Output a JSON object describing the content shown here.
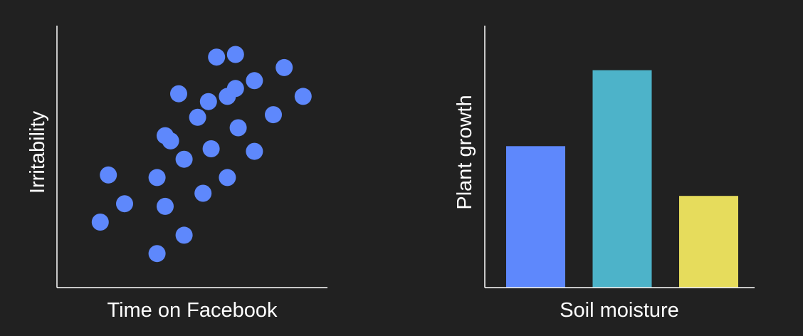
{
  "chart_data": [
    {
      "type": "scatter",
      "xlabel": "Time on Facebook",
      "ylabel": "Irritability",
      "xlim": [
        0,
        100
      ],
      "ylim": [
        0,
        100
      ],
      "grid": false,
      "point_color": "#5e88fc",
      "points": [
        {
          "x": 16,
          "y": 25
        },
        {
          "x": 19,
          "y": 43
        },
        {
          "x": 25,
          "y": 32
        },
        {
          "x": 37,
          "y": 13
        },
        {
          "x": 37,
          "y": 42
        },
        {
          "x": 40,
          "y": 31
        },
        {
          "x": 40,
          "y": 58
        },
        {
          "x": 42,
          "y": 56
        },
        {
          "x": 47,
          "y": 20
        },
        {
          "x": 47,
          "y": 49
        },
        {
          "x": 45,
          "y": 74
        },
        {
          "x": 52,
          "y": 65
        },
        {
          "x": 54,
          "y": 36
        },
        {
          "x": 57,
          "y": 53
        },
        {
          "x": 56,
          "y": 71
        },
        {
          "x": 59,
          "y": 88
        },
        {
          "x": 63,
          "y": 42
        },
        {
          "x": 63,
          "y": 73
        },
        {
          "x": 66,
          "y": 76
        },
        {
          "x": 66,
          "y": 89
        },
        {
          "x": 67,
          "y": 61
        },
        {
          "x": 73,
          "y": 52
        },
        {
          "x": 73,
          "y": 79
        },
        {
          "x": 80,
          "y": 66
        },
        {
          "x": 84,
          "y": 84
        },
        {
          "x": 91,
          "y": 73
        }
      ]
    },
    {
      "type": "bar",
      "xlabel": "Soil moisture",
      "ylabel": "Plant growth",
      "ylim": [
        0,
        100
      ],
      "grid": false,
      "categories": [
        "",
        "",
        ""
      ],
      "values": [
        54,
        83,
        35
      ],
      "colors": [
        "#5e88fc",
        "#4db3c9",
        "#e6dc5c"
      ]
    }
  ]
}
